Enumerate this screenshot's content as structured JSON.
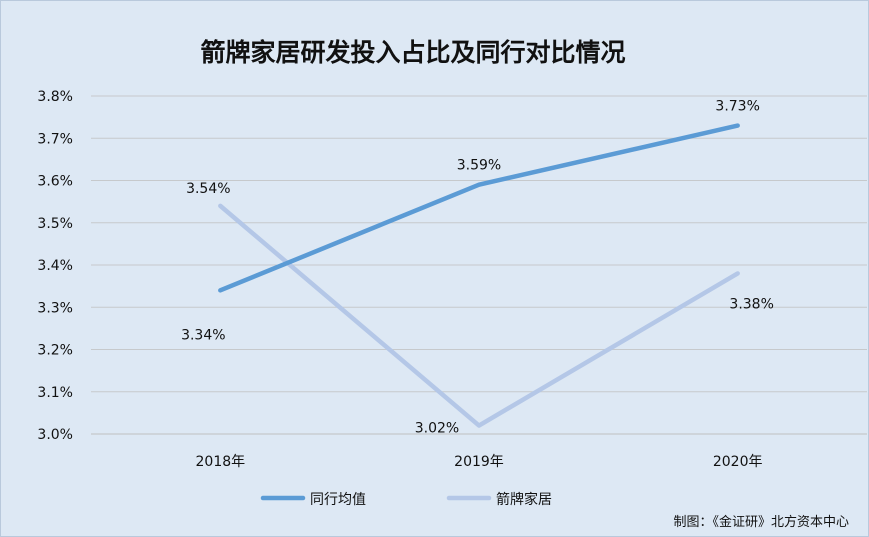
{
  "chart_data": {
    "type": "line",
    "title": "箭牌家居研发投入占比及同行对比情况",
    "categories": [
      "2018年",
      "2019年",
      "2020年"
    ],
    "y_ticks": [
      "3.0%",
      "3.1%",
      "3.2%",
      "3.3%",
      "3.4%",
      "3.5%",
      "3.6%",
      "3.7%",
      "3.8%"
    ],
    "ylim": [
      3.0,
      3.8
    ],
    "grid": true,
    "legend_position": "bottom",
    "series": [
      {
        "name": "同行均值",
        "color": "#5b9bd5",
        "values": [
          3.34,
          3.59,
          3.73
        ],
        "labels": [
          "3.34%",
          "3.59%",
          "3.73%"
        ]
      },
      {
        "name": "箭牌家居",
        "color": "#b4c7e7",
        "values": [
          3.54,
          3.02,
          3.38
        ],
        "labels": [
          "3.54%",
          "3.02%",
          "3.38%"
        ]
      }
    ],
    "credit": "制图：《金证研》北方资本中心"
  }
}
